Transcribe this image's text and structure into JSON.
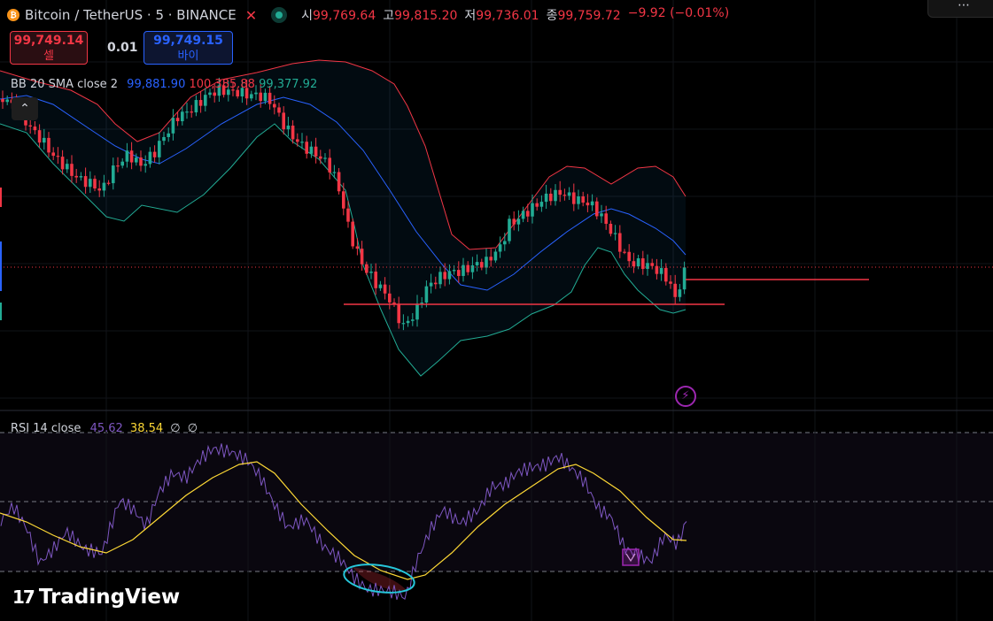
{
  "header": {
    "coin_glyph": "₿",
    "symbol": "Bitcoin / TetherUS · 5 · BINANCE",
    "ohlc": [
      {
        "key": "시",
        "value": "99,769.64"
      },
      {
        "key": "고",
        "value": "99,815.20"
      },
      {
        "key": "저",
        "value": "99,736.01"
      },
      {
        "key": "종",
        "value": "99,759.72"
      }
    ],
    "change": "−9.92 (−0.01%)"
  },
  "trade": {
    "sell_price": "99,749.14",
    "sell_label": "셀",
    "spread": "0.01",
    "buy_price": "99,749.15",
    "buy_label": "바이"
  },
  "bb_legend": {
    "name": "BB 20 SMA close 2",
    "basis": "99,881.90",
    "upper": "100,385.88",
    "lower": "99,377.92"
  },
  "rsi_legend": {
    "name": "RSI 14 close",
    "rsi": "45.62",
    "ma": "38.54",
    "e1": "∅",
    "e2": "∅"
  },
  "watermark": {
    "mark": "17",
    "text": "TradingView"
  },
  "icons": [
    "bitcoin-icon",
    "close-icon",
    "market-status-icon",
    "chevron-up-icon",
    "lightning-icon",
    "screenshot-icon"
  ],
  "colors": {
    "up": "#22ab94",
    "down": "#f23645",
    "bb_basis": "#2962ff",
    "bb_upper": "#f23645",
    "bb_lower": "#22ab94",
    "rsi": "#7e57c2",
    "rsi_ma": "#fdd835",
    "annotation_circle": "#26c6da",
    "marker": "#9c27b0"
  }
}
